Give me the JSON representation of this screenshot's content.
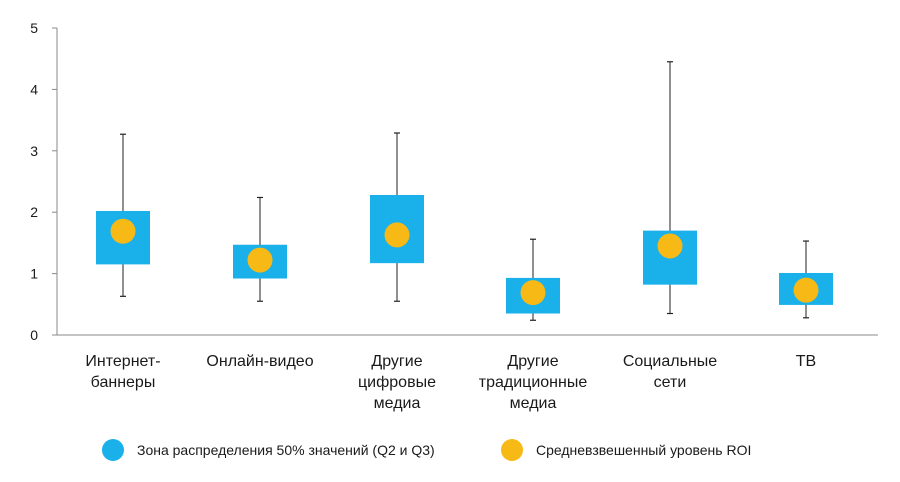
{
  "chart_data": {
    "type": "box",
    "title": "",
    "xlabel": "",
    "ylabel": "",
    "ylim": [
      0,
      5
    ],
    "yticks": [
      "0",
      "1",
      "2",
      "3",
      "4",
      "5"
    ],
    "categories": [
      [
        "Интернет-",
        "баннеры"
      ],
      [
        "Онлайн-видео"
      ],
      [
        "Другие",
        "цифровые",
        "медиа"
      ],
      [
        "Другие",
        "традиционные",
        "медиа"
      ],
      [
        "Социальные",
        "сети"
      ],
      [
        "ТВ"
      ]
    ],
    "series": [
      {
        "name": "min",
        "values": [
          0.63,
          0.55,
          0.55,
          0.24,
          0.35,
          0.28
        ]
      },
      {
        "name": "q1",
        "values": [
          1.15,
          0.92,
          1.17,
          0.35,
          0.82,
          0.49
        ]
      },
      {
        "name": "q3",
        "values": [
          2.02,
          1.47,
          2.28,
          0.93,
          1.7,
          1.01
        ]
      },
      {
        "name": "max",
        "values": [
          3.27,
          2.24,
          3.29,
          1.56,
          4.45,
          1.53
        ]
      },
      {
        "name": "mean",
        "values": [
          1.69,
          1.22,
          1.63,
          0.69,
          1.45,
          0.73
        ]
      }
    ],
    "legend": [
      {
        "label": "Зона распределения 50% значений (Q2 и Q3)",
        "color": "#1ab0ea",
        "shape": "circle"
      },
      {
        "label": "Средневзвешенный уровень ROI",
        "color": "#f7b916",
        "shape": "circle"
      }
    ],
    "colors": {
      "box": "#1ab0ea",
      "mean": "#f7b916",
      "whisker": "#222222",
      "axis": "#888888"
    }
  }
}
